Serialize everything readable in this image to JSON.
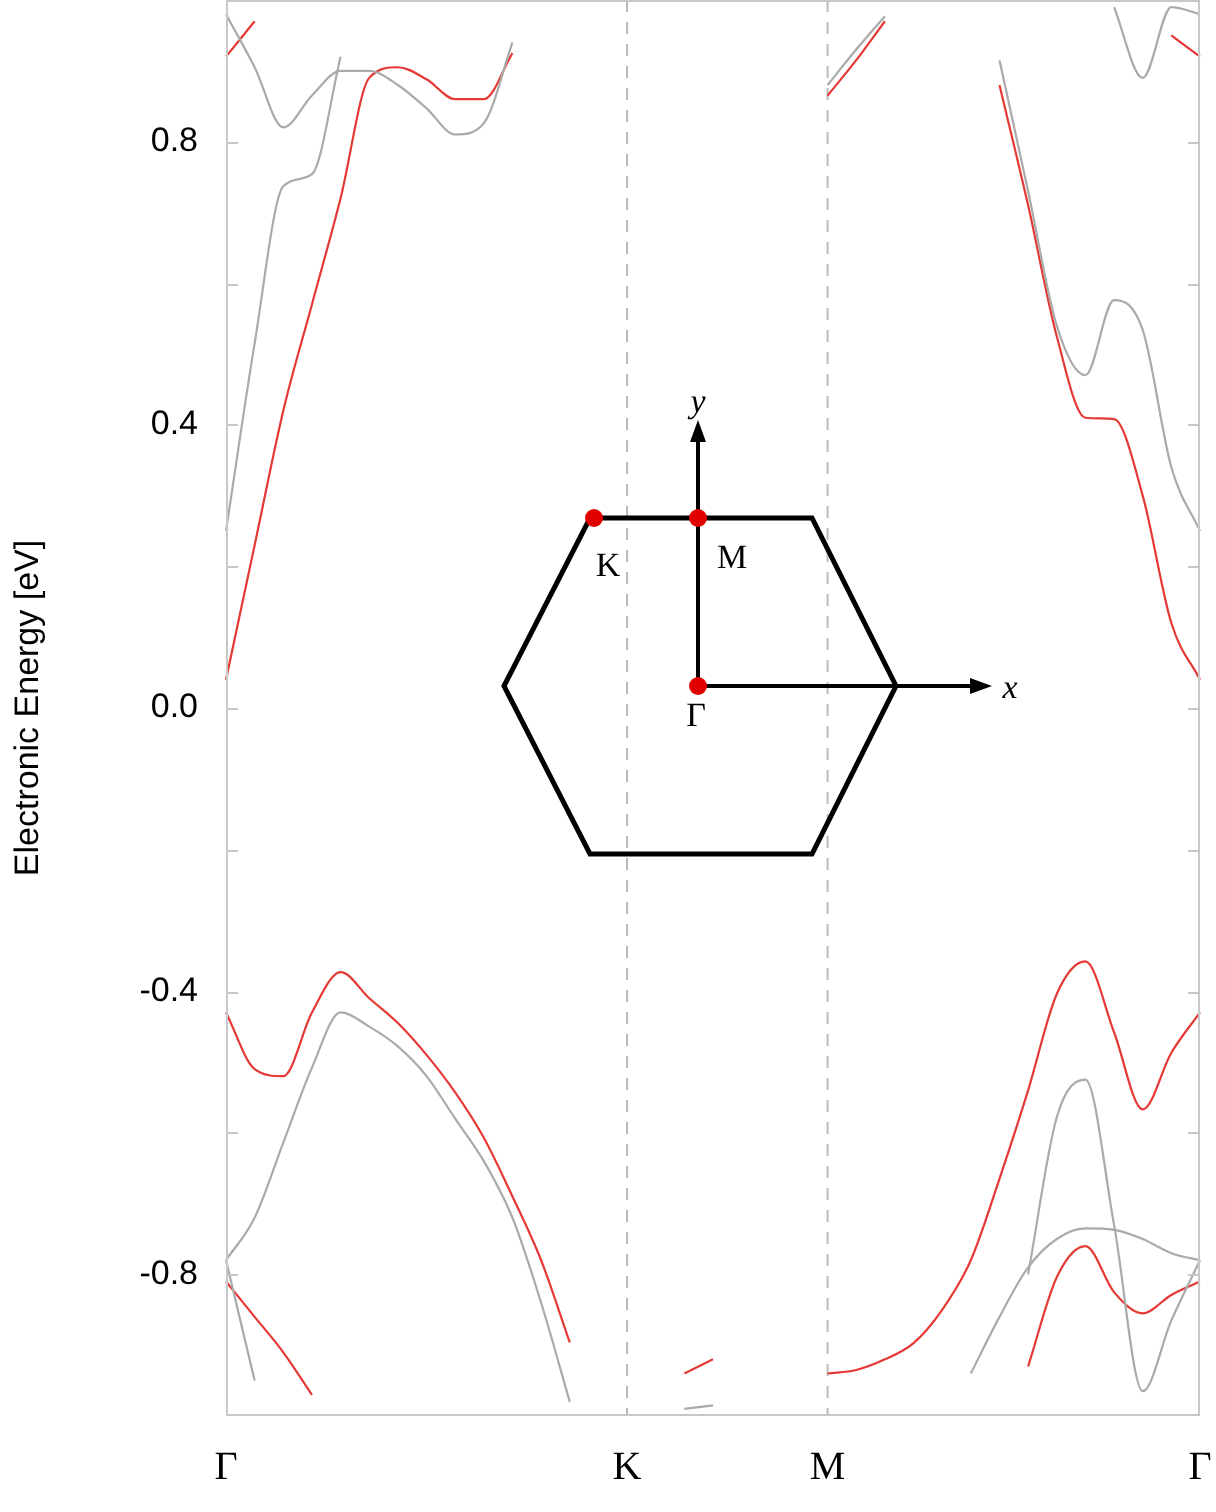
{
  "chart_data": {
    "type": "line",
    "ylabel": "Electronic Energy [eV]",
    "categories": [
      "Γ",
      null,
      null,
      null,
      null,
      null,
      null,
      null,
      null,
      null,
      null,
      null,
      null,
      null,
      "K",
      null,
      null,
      null,
      null,
      null,
      null,
      "M",
      null,
      null,
      null,
      null,
      null,
      null,
      null,
      null,
      null,
      null,
      null,
      null,
      "Γ"
    ],
    "ylim": [
      -1,
      1
    ],
    "yticks": [
      {
        "value": -0.8,
        "label": "-0.8"
      },
      {
        "value": -0.6,
        "label": null
      },
      {
        "value": -0.4,
        "label": "-0.4"
      },
      {
        "value": -0.2,
        "label": null
      },
      {
        "value": 0,
        "label": "0.0"
      },
      {
        "value": 0.2,
        "label": null
      },
      {
        "value": 0.4,
        "label": "0.4"
      },
      {
        "value": 0.6,
        "label": null
      },
      {
        "value": 0.8,
        "label": "0.8"
      }
    ],
    "grid": false,
    "legend": false,
    "ref_lines": [
      {
        "axis": "x",
        "value": "K",
        "color": "#bbbbbb",
        "line_style": "dashed"
      },
      {
        "axis": "x",
        "value": "M",
        "color": "#bbbbbb",
        "line_style": "dashed"
      }
    ],
    "annotations": [
      "K",
      "M",
      "Γ",
      "x",
      "y"
    ],
    "series": [
      {
        "color": "#aaaaaa",
        "values": [
          0.25,
          0.515,
          0.737,
          0.754,
          0.92,
          null,
          null,
          null,
          null,
          null,
          null,
          null,
          null,
          null,
          null,
          null,
          null,
          null,
          null,
          null,
          null,
          null,
          null,
          null,
          null,
          null,
          null,
          0.915,
          0.73,
          0.54,
          0.47,
          0.576,
          0.534,
          0.34,
          0.25
        ]
      },
      {
        "color": "#aaaaaa",
        "values": [
          0.98,
          0.905,
          0.82,
          0.865,
          0.9,
          0.9,
          0.88,
          0.847,
          0.81,
          0.826,
          0.94,
          null,
          null,
          null,
          null,
          null,
          null,
          null,
          null,
          null,
          null,
          0.88,
          0.93,
          0.977,
          null,
          null,
          null,
          null,
          null,
          null,
          null,
          0.99,
          0.89,
          0.99,
          0.98
        ]
      },
      {
        "color": "#aaaaaa",
        "values": [
          -0.78,
          -0.72,
          -0.614,
          -0.508,
          -0.43,
          -0.45,
          -0.478,
          -0.52,
          -0.58,
          -0.64,
          -0.72,
          -0.84,
          -0.98,
          null,
          null,
          null,
          -0.99,
          -0.985,
          null,
          null,
          null,
          null,
          null,
          null,
          null,
          null,
          null,
          null,
          -0.8,
          -0.578,
          -0.525,
          -0.73,
          -0.965,
          -0.865,
          -0.78
        ]
      },
      {
        "color": "#aaaaaa",
        "values": [
          -0.78,
          -0.95,
          null,
          null,
          null,
          null,
          null,
          null,
          null,
          null,
          null,
          null,
          null,
          null,
          null,
          null,
          null,
          null,
          null,
          null,
          null,
          null,
          null,
          null,
          null,
          null,
          -0.94,
          -0.86,
          -0.79,
          -0.75,
          -0.735,
          -0.737,
          -0.75,
          -0.77,
          -0.78
        ]
      },
      {
        "color": "#e53935",
        "values": [
          0.04,
          0.23,
          0.42,
          0.57,
          0.72,
          0.89,
          0.905,
          0.888,
          0.86,
          0.86,
          0.925,
          null,
          null,
          null,
          null,
          null,
          null,
          null,
          null,
          null,
          null,
          0.865,
          0.915,
          0.97,
          null,
          null,
          null,
          0.88,
          0.71,
          0.525,
          0.41,
          0.408,
          0.3,
          0.12,
          0.04
        ]
      },
      {
        "color": "#e53935",
        "values": [
          0.92,
          0.97,
          null,
          null,
          null,
          null,
          null,
          null,
          null,
          null,
          null,
          null,
          null,
          null,
          null,
          null,
          null,
          null,
          null,
          null,
          null,
          null,
          null,
          null,
          null,
          null,
          null,
          null,
          null,
          null,
          null,
          null,
          null,
          0.95,
          0.92
        ]
      },
      {
        "color": "#e53935",
        "values": [
          -0.43,
          -0.51,
          -0.52,
          -0.43,
          -0.373,
          -0.41,
          -0.445,
          -0.49,
          -0.543,
          -0.607,
          -0.69,
          -0.78,
          -0.896,
          null,
          null,
          null,
          -0.94,
          -0.92,
          null,
          null,
          null,
          -0.94,
          -0.935,
          -0.92,
          -0.897,
          -0.85,
          -0.78,
          -0.665,
          -0.54,
          -0.404,
          -0.358,
          -0.458,
          -0.567,
          -0.487,
          -0.43
        ]
      },
      {
        "color": "#e53935",
        "values": [
          -0.81,
          -0.86,
          -0.91,
          -0.97,
          null,
          null,
          null,
          null,
          null,
          null,
          null,
          null,
          null,
          null,
          null,
          null,
          null,
          null,
          null,
          null,
          null,
          null,
          null,
          null,
          null,
          null,
          null,
          null,
          -0.93,
          -0.804,
          -0.76,
          -0.825,
          -0.855,
          -0.829,
          -0.81
        ]
      }
    ]
  }
}
